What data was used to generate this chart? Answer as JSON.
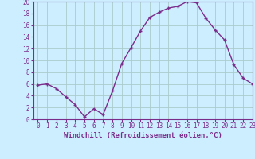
{
  "x": [
    0,
    1,
    2,
    3,
    4,
    5,
    6,
    7,
    8,
    9,
    10,
    11,
    12,
    13,
    14,
    15,
    16,
    17,
    18,
    19,
    20,
    21,
    22,
    23
  ],
  "y": [
    5.8,
    6.0,
    5.2,
    3.8,
    2.5,
    0.4,
    1.8,
    0.8,
    4.8,
    9.5,
    12.2,
    15.0,
    17.3,
    18.2,
    18.9,
    19.2,
    20.0,
    19.8,
    17.2,
    15.2,
    13.5,
    9.3,
    7.0,
    6.0
  ],
  "line_color": "#7B2D8B",
  "marker": "+",
  "bg_color": "#cceeff",
  "grid_color": "#aacccc",
  "xlabel": "Windchill (Refroidissement éolien,°C)",
  "ylim": [
    0,
    20
  ],
  "xlim": [
    -0.5,
    23
  ],
  "yticks": [
    0,
    2,
    4,
    6,
    8,
    10,
    12,
    14,
    16,
    18,
    20
  ],
  "xticks": [
    0,
    1,
    2,
    3,
    4,
    5,
    6,
    7,
    8,
    9,
    10,
    11,
    12,
    13,
    14,
    15,
    16,
    17,
    18,
    19,
    20,
    21,
    22,
    23
  ],
  "tick_color": "#7B2D8B",
  "label_color": "#7B2D8B",
  "tick_fontsize": 5.5,
  "xlabel_fontsize": 6.5
}
